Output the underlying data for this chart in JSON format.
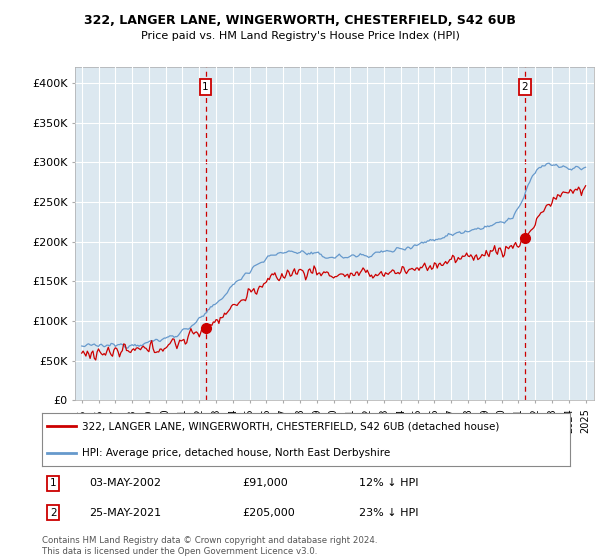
{
  "title1": "322, LANGER LANE, WINGERWORTH, CHESTERFIELD, S42 6UB",
  "title2": "Price paid vs. HM Land Registry's House Price Index (HPI)",
  "legend_label1": "322, LANGER LANE, WINGERWORTH, CHESTERFIELD, S42 6UB (detached house)",
  "legend_label2": "HPI: Average price, detached house, North East Derbyshire",
  "annotation1_date": "03-MAY-2002",
  "annotation1_price": "£91,000",
  "annotation1_hpi": "12% ↓ HPI",
  "annotation2_date": "25-MAY-2021",
  "annotation2_price": "£205,000",
  "annotation2_hpi": "23% ↓ HPI",
  "ytick_labels": [
    "£0",
    "£50K",
    "£100K",
    "£150K",
    "£200K",
    "£250K",
    "£300K",
    "£350K",
    "£400K"
  ],
  "yticks": [
    0,
    50000,
    100000,
    150000,
    200000,
    250000,
    300000,
    350000,
    400000
  ],
  "xlim_start": 1994.6,
  "xlim_end": 2025.5,
  "ylim_max": 420000,
  "line1_color": "#cc0000",
  "line2_color": "#6699cc",
  "plot_bg_color": "#dce8f0",
  "fig_bg_color": "#ffffff",
  "grid_color": "#ffffff",
  "sale1_x": 2002.37,
  "sale1_y": 91000,
  "sale2_x": 2021.38,
  "sale2_y": 205000,
  "footer": "Contains HM Land Registry data © Crown copyright and database right 2024.\nThis data is licensed under the Open Government Licence v3.0."
}
